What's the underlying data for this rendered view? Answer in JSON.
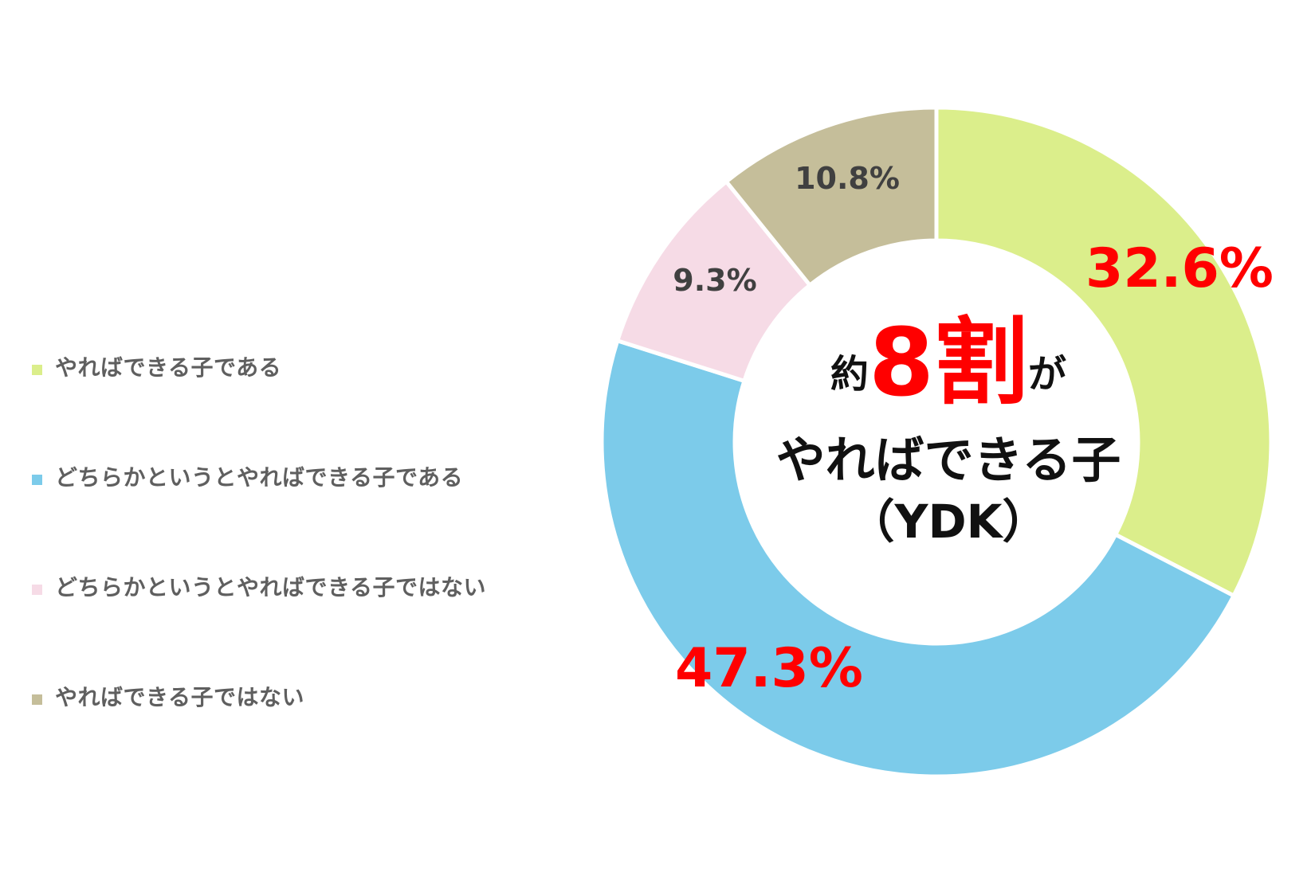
{
  "chart_data": {
    "type": "pie",
    "categories": [
      "やればできる子である",
      "どちらかというとやればできる子である",
      "どちらかというとやればできる子ではない",
      "やればできる子ではない"
    ],
    "values": [
      32.6,
      47.3,
      9.3,
      10.8
    ],
    "labels": [
      "32.6%",
      "47.3%",
      "9.3%",
      "10.8%"
    ],
    "colors": [
      "#dbee8b",
      "#7ccbea",
      "#f6dbe6",
      "#c5be9a"
    ],
    "label_colors": [
      "#ff0000",
      "#ff0000",
      "#404040",
      "#404040"
    ],
    "legend_position": "left"
  },
  "center": {
    "prefix": "約",
    "highlight": "8割",
    "suffix": "が",
    "line2": "やればできる子",
    "line3": "（YDK）"
  }
}
